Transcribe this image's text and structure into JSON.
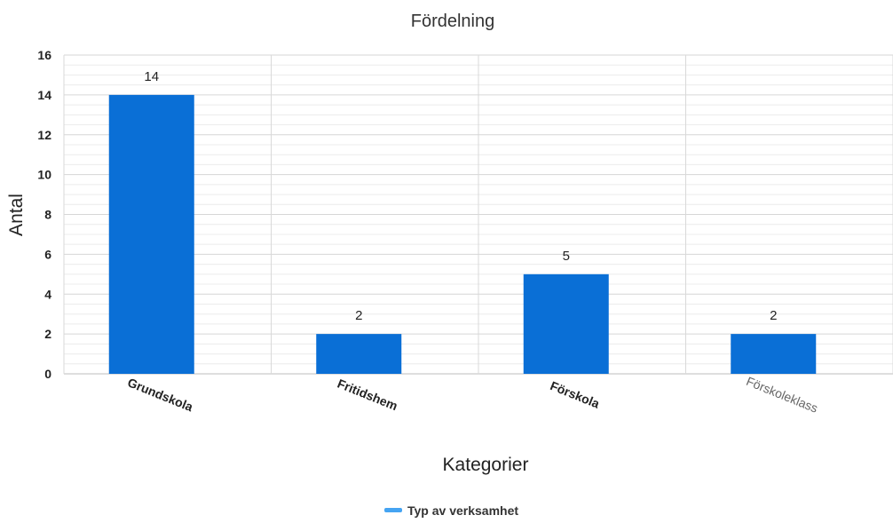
{
  "chart_data": {
    "type": "bar",
    "title": "Fördelning",
    "xlabel": "Kategorier",
    "ylabel": "Antal",
    "categories": [
      "Grundskola",
      "Fritidshem",
      "Förskola",
      "Förskoleklass"
    ],
    "series": [
      {
        "name": "Typ av verksamhet",
        "values": [
          14,
          2,
          5,
          2
        ],
        "color": "#0a6fd6"
      }
    ],
    "ylim": [
      0,
      16
    ],
    "yticks": [
      0,
      2,
      4,
      6,
      8,
      10,
      12,
      14,
      16
    ],
    "data_labels": [
      "14",
      "2",
      "5",
      "2"
    ],
    "grid": true,
    "legend_position": "bottom"
  }
}
